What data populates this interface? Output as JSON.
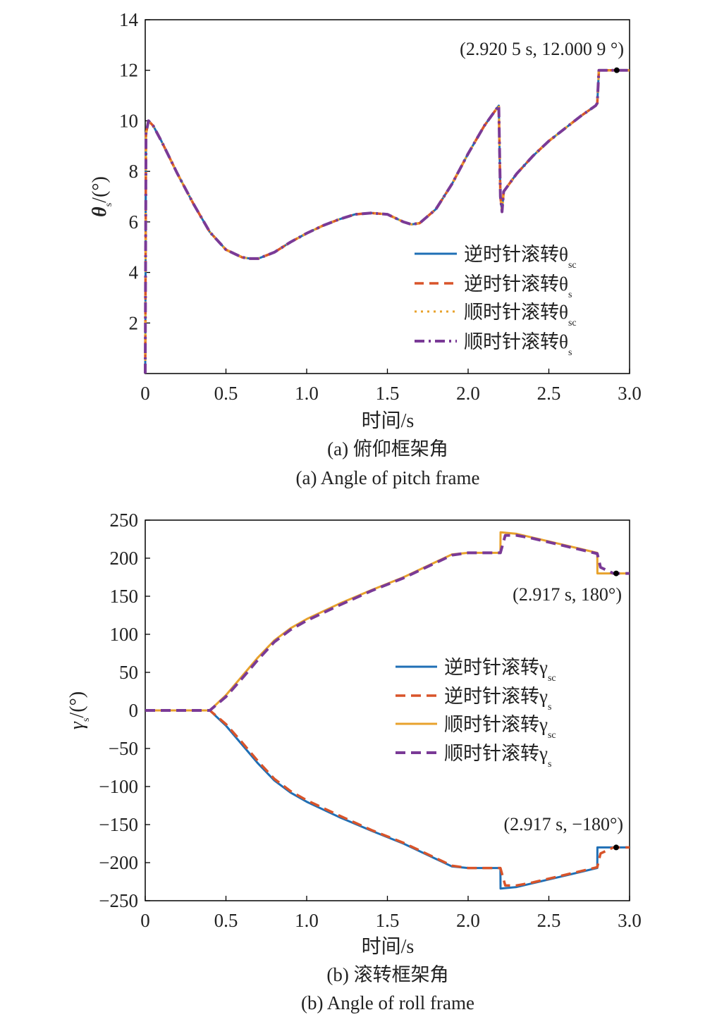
{
  "chart_data": [
    {
      "type": "line",
      "caption_zh": "(a) 俯仰框架角",
      "caption_en": "(a) Angle of pitch frame",
      "xlabel": "时间/s",
      "ylabel_main": "θ",
      "ylabel_sub": "s",
      "ylabel_unit": "/(°)",
      "xlim": [
        0,
        3.0
      ],
      "ylim": [
        0,
        14
      ],
      "xticks": [
        0,
        0.5,
        1.0,
        1.5,
        2.0,
        2.5,
        3.0
      ],
      "xtick_labels": [
        "0",
        "0.5",
        "1.0",
        "1.5",
        "2.0",
        "2.5",
        "3.0"
      ],
      "yticks": [
        2,
        4,
        6,
        8,
        10,
        12,
        14
      ],
      "ytick_labels": [
        "2",
        "4",
        "6",
        "8",
        "10",
        "12",
        "14"
      ],
      "grid": false,
      "legend_position": "lower-right",
      "annotation": {
        "text": "(2.920 5 s, 12.000 9 °)",
        "x": 2.9205,
        "y": 12.0009
      },
      "series": [
        {
          "legend_main": "逆时针滚转θ",
          "legend_sub": "sc",
          "color": "#1f6fb5",
          "dash": "",
          "x": [
            0,
            0.005,
            0.02,
            0.05,
            0.1,
            0.2,
            0.3,
            0.4,
            0.5,
            0.6,
            0.65,
            0.7,
            0.8,
            0.9,
            1.0,
            1.1,
            1.2,
            1.3,
            1.4,
            1.5,
            1.6,
            1.65,
            1.7,
            1.8,
            1.9,
            2.0,
            2.1,
            2.19,
            2.2,
            2.21,
            2.22,
            2.3,
            2.4,
            2.5,
            2.6,
            2.7,
            2.79,
            2.8,
            2.81,
            2.85,
            2.92,
            3.0
          ],
          "y": [
            0,
            9.5,
            10.0,
            9.8,
            9.2,
            7.9,
            6.7,
            5.6,
            4.9,
            4.6,
            4.55,
            4.55,
            4.8,
            5.2,
            5.55,
            5.85,
            6.1,
            6.3,
            6.35,
            6.3,
            6.0,
            5.9,
            5.95,
            6.5,
            7.5,
            8.7,
            9.8,
            10.6,
            7.0,
            6.4,
            7.2,
            7.9,
            8.6,
            9.2,
            9.7,
            10.2,
            10.6,
            10.7,
            12.0,
            12.0,
            12.0,
            12.0
          ]
        },
        {
          "legend_main": "逆时针滚转θ",
          "legend_sub": "s",
          "color": "#d8542a",
          "dash": "13,8",
          "x": [
            0,
            0.005,
            0.02,
            0.05,
            0.1,
            0.2,
            0.3,
            0.4,
            0.5,
            0.6,
            0.65,
            0.7,
            0.8,
            0.9,
            1.0,
            1.1,
            1.2,
            1.3,
            1.4,
            1.5,
            1.6,
            1.65,
            1.7,
            1.8,
            1.9,
            2.0,
            2.1,
            2.19,
            2.2,
            2.21,
            2.22,
            2.3,
            2.4,
            2.5,
            2.6,
            2.7,
            2.79,
            2.8,
            2.81,
            2.85,
            2.92,
            3.0
          ],
          "y": [
            0,
            9.5,
            10.0,
            9.8,
            9.2,
            7.9,
            6.7,
            5.6,
            4.9,
            4.6,
            4.55,
            4.55,
            4.8,
            5.2,
            5.55,
            5.85,
            6.1,
            6.3,
            6.35,
            6.3,
            6.0,
            5.9,
            5.95,
            6.5,
            7.5,
            8.7,
            9.8,
            10.6,
            7.0,
            6.4,
            7.2,
            7.9,
            8.6,
            9.2,
            9.7,
            10.2,
            10.6,
            10.7,
            12.0,
            12.0,
            12.0,
            12.0
          ]
        },
        {
          "legend_main": "顺时针滚转θ",
          "legend_sub": "sc",
          "color": "#e8a22c",
          "dash": "3,6",
          "x": [
            0,
            0.005,
            0.02,
            0.05,
            0.1,
            0.2,
            0.3,
            0.4,
            0.5,
            0.6,
            0.65,
            0.7,
            0.8,
            0.9,
            1.0,
            1.1,
            1.2,
            1.3,
            1.4,
            1.5,
            1.6,
            1.65,
            1.7,
            1.8,
            1.9,
            2.0,
            2.1,
            2.19,
            2.2,
            2.21,
            2.22,
            2.3,
            2.4,
            2.5,
            2.6,
            2.7,
            2.79,
            2.8,
            2.81,
            2.85,
            2.92,
            3.0
          ],
          "y": [
            0,
            9.5,
            10.0,
            9.8,
            9.2,
            7.9,
            6.7,
            5.6,
            4.9,
            4.6,
            4.55,
            4.55,
            4.8,
            5.2,
            5.55,
            5.85,
            6.1,
            6.3,
            6.35,
            6.3,
            6.0,
            5.9,
            5.95,
            6.5,
            7.5,
            8.7,
            9.8,
            10.6,
            7.0,
            6.4,
            7.2,
            7.9,
            8.6,
            9.2,
            9.7,
            10.2,
            10.6,
            10.7,
            12.0,
            12.0,
            12.0,
            12.0
          ]
        },
        {
          "legend_main": "顺时针滚转θ",
          "legend_sub": "s",
          "color": "#7a3a96",
          "dash": "14,6,3,6",
          "x": [
            0,
            0.005,
            0.02,
            0.05,
            0.1,
            0.2,
            0.3,
            0.4,
            0.5,
            0.6,
            0.65,
            0.7,
            0.8,
            0.9,
            1.0,
            1.1,
            1.2,
            1.3,
            1.4,
            1.5,
            1.6,
            1.65,
            1.7,
            1.8,
            1.9,
            2.0,
            2.1,
            2.19,
            2.2,
            2.21,
            2.22,
            2.3,
            2.4,
            2.5,
            2.6,
            2.7,
            2.79,
            2.8,
            2.81,
            2.85,
            2.92,
            3.0
          ],
          "y": [
            0,
            9.5,
            10.0,
            9.8,
            9.2,
            7.9,
            6.7,
            5.6,
            4.9,
            4.6,
            4.55,
            4.55,
            4.8,
            5.2,
            5.55,
            5.85,
            6.1,
            6.3,
            6.35,
            6.3,
            6.0,
            5.9,
            5.95,
            6.5,
            7.5,
            8.7,
            9.8,
            10.6,
            7.0,
            6.4,
            7.2,
            7.9,
            8.6,
            9.2,
            9.7,
            10.2,
            10.6,
            10.7,
            12.0,
            12.0,
            12.0,
            12.0
          ]
        }
      ]
    },
    {
      "type": "line",
      "caption_zh": "(b) 滚转框架角",
      "caption_en": "(b) Angle of roll frame",
      "xlabel": "时间/s",
      "ylabel_main": "γ",
      "ylabel_sub": "s",
      "ylabel_unit": "/(°)",
      "xlim": [
        0,
        3.0
      ],
      "ylim": [
        -250,
        250
      ],
      "xticks": [
        0,
        0.5,
        1.0,
        1.5,
        2.0,
        2.5,
        3.0
      ],
      "xtick_labels": [
        "0",
        "0.5",
        "1.0",
        "1.5",
        "2.0",
        "2.5",
        "3.0"
      ],
      "yticks": [
        -250,
        -200,
        -150,
        -100,
        -50,
        0,
        50,
        100,
        150,
        200,
        250
      ],
      "ytick_labels": [
        "−250",
        "−200",
        "−150",
        "−100",
        "−50",
        "0",
        "50",
        "100",
        "150",
        "200",
        "250"
      ],
      "grid": false,
      "legend_position": "center-right",
      "annotations": [
        {
          "text": "(2.917 s, 180°)",
          "x": 2.917,
          "y": 180
        },
        {
          "text": "(2.917 s, −180°)",
          "x": 2.917,
          "y": -180
        }
      ],
      "series": [
        {
          "legend_main": "逆时针滚转γ",
          "legend_sub": "sc",
          "color": "#1f6fb5",
          "dash": "",
          "x": [
            0,
            0.4,
            0.5,
            0.6,
            0.7,
            0.8,
            0.9,
            1.0,
            1.2,
            1.4,
            1.6,
            1.8,
            1.9,
            2.0,
            2.1,
            2.2,
            2.201,
            2.3,
            2.4,
            2.5,
            2.6,
            2.7,
            2.8,
            2.801,
            2.9,
            3.0
          ],
          "y": [
            0,
            0,
            -20,
            -45,
            -70,
            -92,
            -108,
            -120,
            -140,
            -158,
            -175,
            -195,
            -205,
            -207,
            -207,
            -207,
            -234,
            -232,
            -227,
            -222,
            -217,
            -212,
            -207,
            -180,
            -180,
            -180
          ]
        },
        {
          "legend_main": "逆时针滚转γ",
          "legend_sub": "s",
          "color": "#d8542a",
          "dash": "14,8",
          "x": [
            0,
            0.4,
            0.5,
            0.6,
            0.7,
            0.8,
            0.9,
            1.0,
            1.2,
            1.4,
            1.6,
            1.8,
            1.9,
            2.0,
            2.1,
            2.2,
            2.23,
            2.3,
            2.4,
            2.5,
            2.6,
            2.7,
            2.8,
            2.82,
            2.9,
            3.0
          ],
          "y": [
            0,
            0,
            -18,
            -42,
            -67,
            -90,
            -106,
            -118,
            -138,
            -157,
            -174,
            -194,
            -204,
            -207,
            -207,
            -207,
            -230,
            -230,
            -226,
            -221,
            -216,
            -211,
            -206,
            -188,
            -180,
            -180
          ]
        },
        {
          "legend_main": "顺时针滚转γ",
          "legend_sub": "sc",
          "color": "#e8a22c",
          "dash": "",
          "x": [
            0,
            0.4,
            0.5,
            0.6,
            0.7,
            0.8,
            0.9,
            1.0,
            1.2,
            1.4,
            1.6,
            1.8,
            1.9,
            2.0,
            2.1,
            2.2,
            2.201,
            2.3,
            2.4,
            2.5,
            2.6,
            2.7,
            2.8,
            2.801,
            2.9,
            3.0
          ],
          "y": [
            0,
            0,
            20,
            45,
            70,
            92,
            108,
            120,
            140,
            158,
            175,
            195,
            205,
            207,
            207,
            207,
            234,
            232,
            227,
            222,
            217,
            212,
            207,
            180,
            180,
            180
          ]
        },
        {
          "legend_main": "顺时针滚转γ",
          "legend_sub": "s",
          "color": "#7a3a96",
          "dash": "14,8",
          "x": [
            0,
            0.4,
            0.5,
            0.6,
            0.7,
            0.8,
            0.9,
            1.0,
            1.2,
            1.4,
            1.6,
            1.8,
            1.9,
            2.0,
            2.1,
            2.2,
            2.23,
            2.3,
            2.4,
            2.5,
            2.6,
            2.7,
            2.8,
            2.82,
            2.9,
            3.0
          ],
          "y": [
            0,
            0,
            18,
            42,
            67,
            90,
            106,
            118,
            138,
            157,
            174,
            194,
            204,
            207,
            207,
            207,
            230,
            230,
            226,
            221,
            216,
            211,
            206,
            188,
            180,
            180
          ]
        }
      ]
    }
  ]
}
